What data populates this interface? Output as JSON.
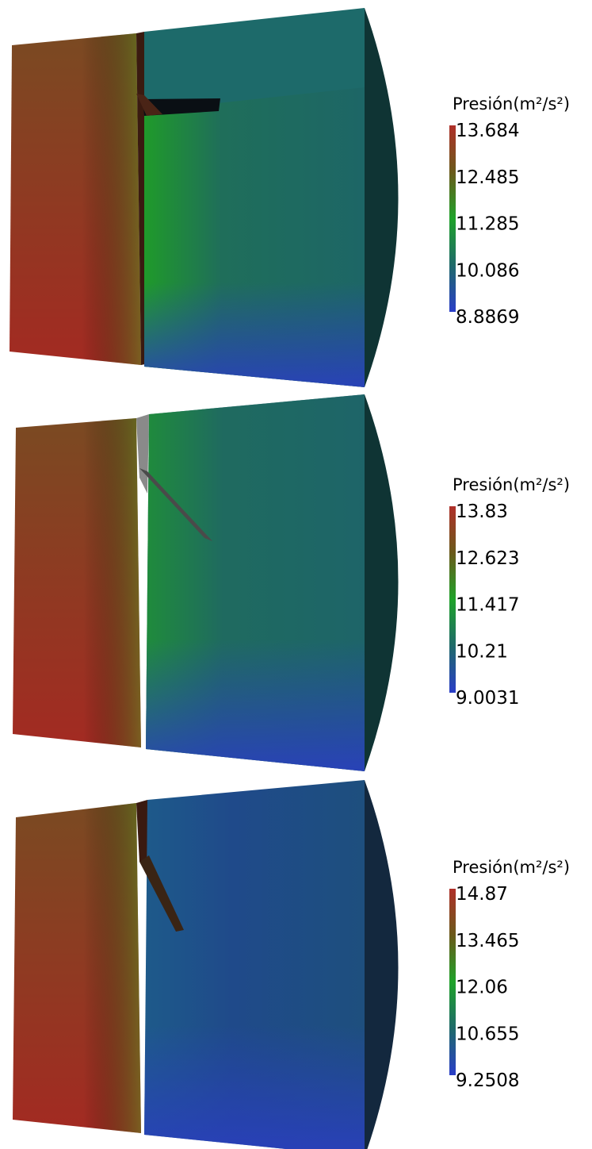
{
  "panels": [
    {
      "legend": {
        "title": "Presión(m²/s²)",
        "ticks": [
          13.684,
          12.485,
          11.285,
          10.086,
          8.8869
        ]
      }
    },
    {
      "legend": {
        "title": "Presión(m²/s²)",
        "ticks": [
          13.83,
          12.623,
          11.417,
          10.21,
          9.0031
        ]
      }
    },
    {
      "legend": {
        "title": "Presión(m²/s²)",
        "ticks": [
          14.87,
          13.465,
          12.06,
          10.655,
          9.2508
        ]
      }
    }
  ]
}
